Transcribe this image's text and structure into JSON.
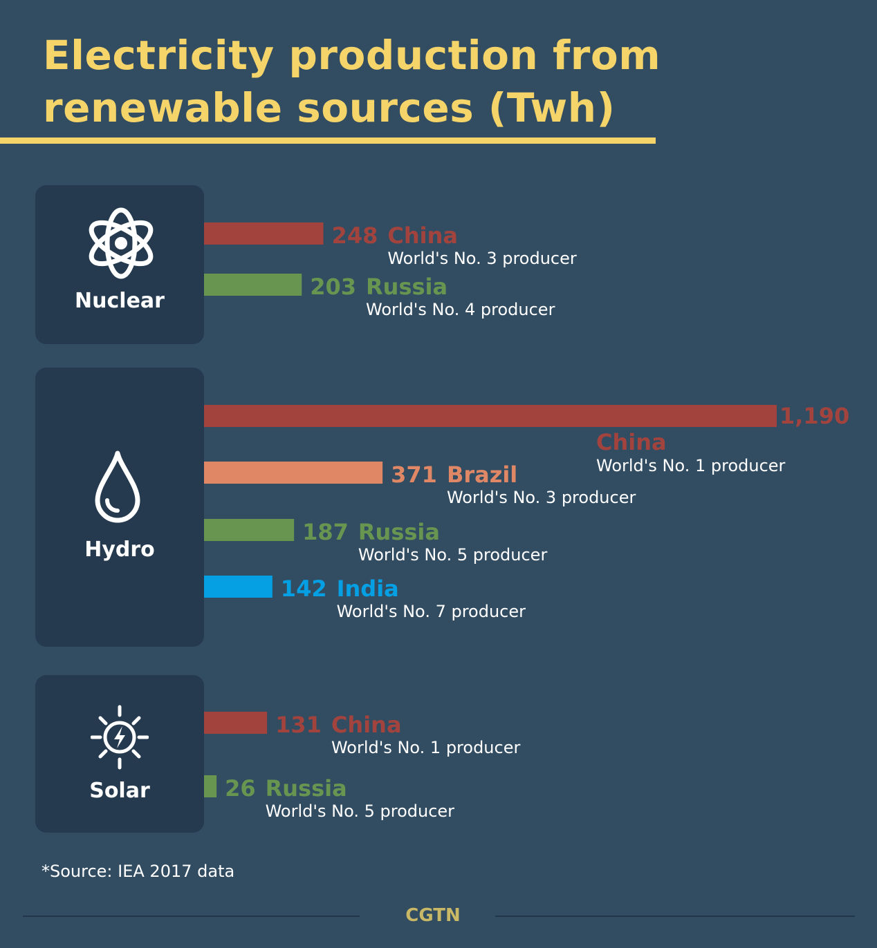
{
  "title_lines": [
    "Electricity production from",
    "renewable sources (Twh)"
  ],
  "colors": {
    "title": "#f5d46a",
    "China": "#a3433e",
    "Russia": "#689650",
    "Brazil": "#e08865",
    "India": "#05a0e4"
  },
  "panels": [
    {
      "label": "Nuclear",
      "icon": "atom-icon"
    },
    {
      "label": "Hydro",
      "icon": "water-drop-icon"
    },
    {
      "label": "Solar",
      "icon": "sun-bolt-icon"
    }
  ],
  "chart_data": {
    "type": "bar",
    "orientation": "horizontal",
    "title": "Electricity production from renewable sources (Twh)",
    "groups": [
      {
        "name": "Nuclear",
        "bars": [
          {
            "value": 248,
            "value_label": "248",
            "country": "China",
            "rank": "World's No. 3 producer"
          },
          {
            "value": 203,
            "value_label": "203",
            "country": "Russia",
            "rank": "World's No. 4 producer"
          }
        ]
      },
      {
        "name": "Hydro",
        "bars": [
          {
            "value": 1190,
            "value_label": "1,190",
            "country": "China",
            "rank": "World's No. 1 producer"
          },
          {
            "value": 371,
            "value_label": "371",
            "country": "Brazil",
            "rank": "World's No. 3 producer"
          },
          {
            "value": 187,
            "value_label": "187",
            "country": "Russia",
            "rank": "World's No. 5 producer"
          },
          {
            "value": 142,
            "value_label": "142",
            "country": "India",
            "rank": "World's No. 7 producer"
          }
        ]
      },
      {
        "name": "Solar",
        "bars": [
          {
            "value": 131,
            "value_label": "131",
            "country": "China",
            "rank": "World's No. 1 producer"
          },
          {
            "value": 26,
            "value_label": "26",
            "country": "Russia",
            "rank": "World's No. 5 producer"
          }
        ]
      }
    ]
  },
  "source": "*Source: IEA 2017 data",
  "brand": "CGTN"
}
